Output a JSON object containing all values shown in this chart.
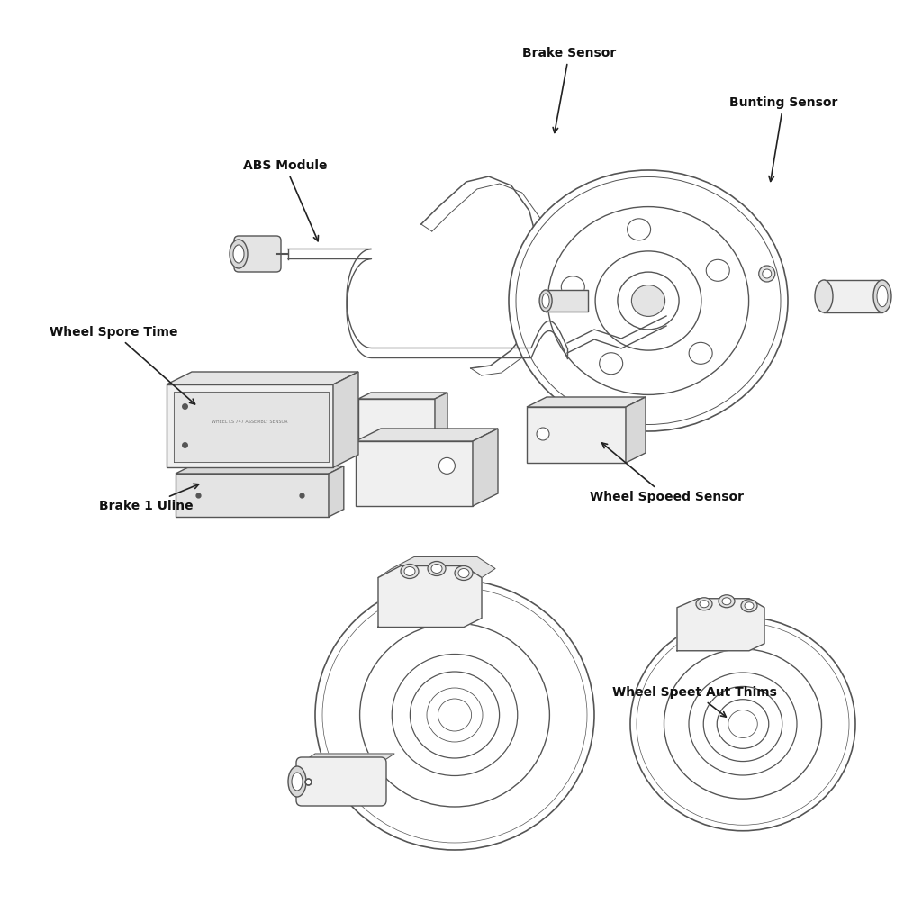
{
  "background_color": "#ffffff",
  "line_color": "#555555",
  "line_color_light": "#888888",
  "text_color": "#111111",
  "face_color": "#f0f0f0",
  "face_color2": "#e4e4e4",
  "face_color3": "#d8d8d8",
  "labels": {
    "brake_sensor": "Brake Sensor",
    "bunting_sensor": "Bunting Sensor",
    "abs_module": "ABS Module",
    "wheel_spore_time": "Wheel Spore Time",
    "brake_1_uline": "Brake 1 Uline",
    "wheel_spoeed_sensor": "Wheel Spoeed Sensor",
    "wheel_speet_aut_thims": "Wheel Speet Aut Thims"
  },
  "fontsize": 10,
  "lw": 1.0
}
